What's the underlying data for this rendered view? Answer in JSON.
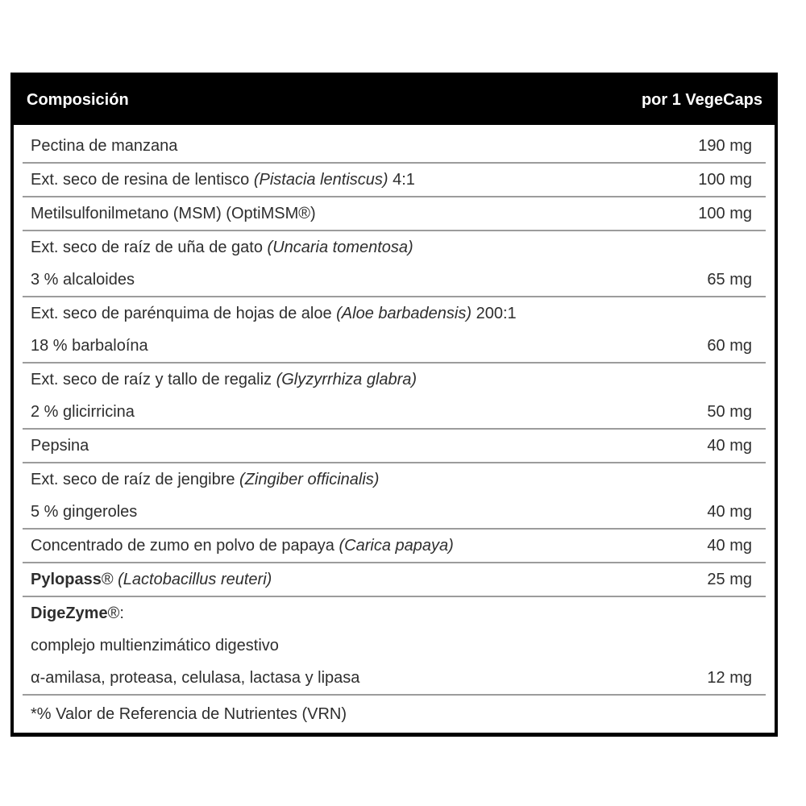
{
  "table": {
    "header": {
      "left": "Composición",
      "right": "por 1 VegeCaps"
    },
    "colors": {
      "header_bg": "#000000",
      "header_text": "#ffffff",
      "body_text": "#2e2e2e",
      "separator": "#9c9c9c",
      "outer_border": "#000000"
    },
    "rows": [
      {
        "lines": [
          {
            "segments": [
              {
                "t": "Pectina de manzana"
              }
            ],
            "value": "190 mg"
          }
        ]
      },
      {
        "lines": [
          {
            "segments": [
              {
                "t": "Ext. seco de resina de lentisco "
              },
              {
                "t": "(Pistacia lentiscus)",
                "s": "i"
              },
              {
                "t": " 4:1"
              }
            ],
            "value": "100 mg"
          }
        ]
      },
      {
        "lines": [
          {
            "segments": [
              {
                "t": "Metilsulfonilmetano (MSM) (OptiMSM®)"
              }
            ],
            "value": "100 mg"
          }
        ]
      },
      {
        "lines": [
          {
            "segments": [
              {
                "t": "Ext. seco de raíz de uña de gato "
              },
              {
                "t": "(Uncaria tomentosa)",
                "s": "i"
              }
            ],
            "value": null
          },
          {
            "segments": [
              {
                "t": "3 % alcaloides"
              }
            ],
            "value": "65 mg"
          }
        ]
      },
      {
        "lines": [
          {
            "segments": [
              {
                "t": "Ext. seco de parénquima de hojas de aloe "
              },
              {
                "t": "(Aloe barbadensis)",
                "s": "i"
              },
              {
                "t": " 200:1"
              }
            ],
            "value": null
          },
          {
            "segments": [
              {
                "t": "18 % barbaloína"
              }
            ],
            "value": "60 mg"
          }
        ]
      },
      {
        "lines": [
          {
            "segments": [
              {
                "t": "Ext. seco de raíz y tallo de regaliz "
              },
              {
                "t": "(Glyzyrrhiza glabra)",
                "s": "i"
              }
            ],
            "value": null
          },
          {
            "segments": [
              {
                "t": "2 % glicirricina"
              }
            ],
            "value": "50 mg"
          }
        ]
      },
      {
        "lines": [
          {
            "segments": [
              {
                "t": "Pepsina"
              }
            ],
            "value": "40 mg"
          }
        ]
      },
      {
        "lines": [
          {
            "segments": [
              {
                "t": "Ext. seco de raíz de jengibre "
              },
              {
                "t": "(Zingiber officinalis)",
                "s": "i"
              }
            ],
            "value": null
          },
          {
            "segments": [
              {
                "t": "5 % gingeroles"
              }
            ],
            "value": "40 mg"
          }
        ]
      },
      {
        "lines": [
          {
            "segments": [
              {
                "t": "Concentrado de zumo en polvo de papaya "
              },
              {
                "t": "(Carica papaya)",
                "s": "i"
              }
            ],
            "value": "40 mg"
          }
        ]
      },
      {
        "lines": [
          {
            "segments": [
              {
                "t": "Pylopass",
                "s": "b"
              },
              {
                "t": "® "
              },
              {
                "t": "(Lactobacillus reuteri)",
                "s": "i"
              }
            ],
            "value": "25 mg"
          }
        ]
      },
      {
        "lines": [
          {
            "segments": [
              {
                "t": "DigeZyme",
                "s": "b"
              },
              {
                "t": "®:"
              }
            ],
            "value": null
          },
          {
            "segments": [
              {
                "t": "complejo multienzimático digestivo"
              }
            ],
            "value": null
          },
          {
            "segments": [
              {
                "t": "α-amilasa, proteasa, celulasa, lactasa y lipasa"
              }
            ],
            "value": "12 mg"
          }
        ]
      },
      {
        "lines": [
          {
            "segments": [
              {
                "t": "*% Valor de Referencia de Nutrientes (VRN)"
              }
            ],
            "value": null
          }
        ]
      }
    ]
  }
}
